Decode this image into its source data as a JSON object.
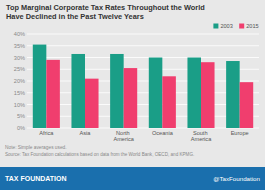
{
  "chart_data": {
    "type": "bar",
    "title": "Top Marginal Corporate Tax Rates Throughout the World",
    "subtitle": "Have Declined in the Past Twelve Years",
    "categories": [
      "Africa",
      "Asia",
      "North America",
      "Oceania",
      "South America",
      "Europe"
    ],
    "series": [
      {
        "name": "2003",
        "color": "#1a9e87",
        "values": [
          35.5,
          31.5,
          31.5,
          30.0,
          30.0,
          28.5
        ]
      },
      {
        "name": "2015",
        "color": "#f03e6e",
        "values": [
          29.0,
          21.0,
          25.5,
          22.0,
          28.0,
          19.5
        ]
      }
    ],
    "ylim": [
      0,
      40
    ],
    "yticks": [
      {
        "value": 0,
        "label": "0%"
      },
      {
        "value": 5,
        "label": "5%"
      },
      {
        "value": 10,
        "label": "10%"
      },
      {
        "value": 15,
        "label": "15%"
      },
      {
        "value": 20,
        "label": "20%"
      },
      {
        "value": 25,
        "label": "25%"
      },
      {
        "value": 30,
        "label": "30%"
      },
      {
        "value": 35,
        "label": "35%"
      },
      {
        "value": 40,
        "label": "40%"
      }
    ],
    "grid": true,
    "legend": "top-right",
    "annotations": [
      "Note: Simple averages used.",
      "Source: Tax Foundation calculations based on data from the World Bank, OECD, and KPMG.",
      "TAX FOUNDATION",
      "@TaxFoundation"
    ]
  }
}
